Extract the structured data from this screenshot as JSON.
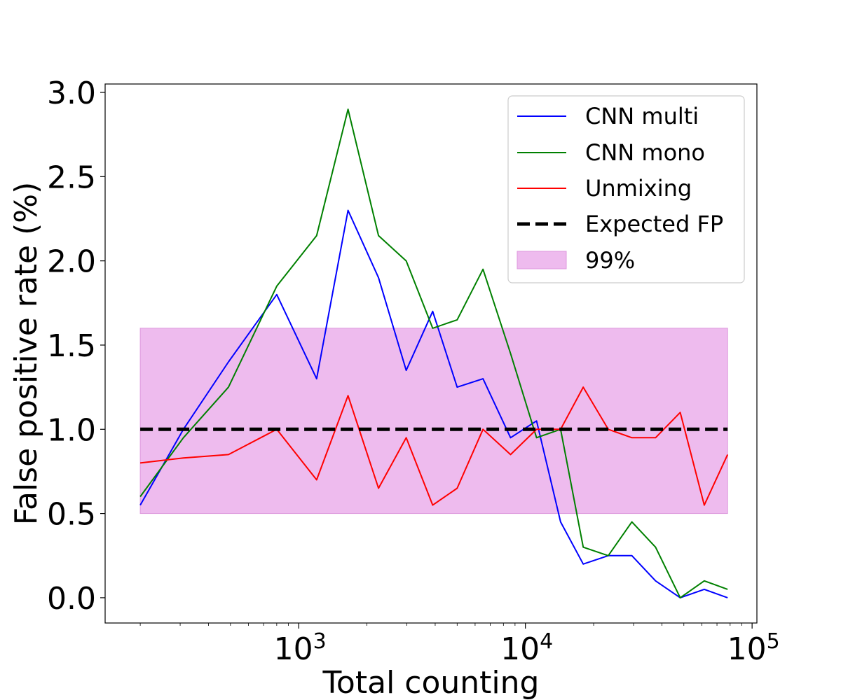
{
  "chart_data": {
    "type": "line",
    "xscale": "log",
    "xlabel": "Total counting",
    "ylabel": "False positive rate (%)",
    "xlim": [
      140,
      105000
    ],
    "ylim": [
      -0.15,
      3.05
    ],
    "x_major_ticks": [
      {
        "value": 1000,
        "base": "10",
        "exp": "3"
      },
      {
        "value": 10000,
        "base": "10",
        "exp": "4"
      },
      {
        "value": 100000,
        "base": "10",
        "exp": "5"
      }
    ],
    "y_ticks": [
      {
        "value": 0.0,
        "label": "0.0"
      },
      {
        "value": 0.5,
        "label": "0.5"
      },
      {
        "value": 1.0,
        "label": "1.0"
      },
      {
        "value": 1.5,
        "label": "1.5"
      },
      {
        "value": 2.0,
        "label": "2.0"
      },
      {
        "value": 2.5,
        "label": "2.5"
      },
      {
        "value": 3.0,
        "label": "3.0"
      }
    ],
    "x": [
      200,
      310,
      490,
      800,
      1200,
      1650,
      2250,
      2980,
      3900,
      5000,
      6500,
      8600,
      11200,
      14300,
      18000,
      23200,
      29500,
      37500,
      48200,
      61500,
      78000
    ],
    "series": [
      {
        "name": "CNN multi",
        "color": "#0000ff",
        "style": "solid",
        "values": [
          0.55,
          1.0,
          1.4,
          1.8,
          1.3,
          2.3,
          1.9,
          1.35,
          1.7,
          1.25,
          1.3,
          0.95,
          1.05,
          0.45,
          0.2,
          0.25,
          0.25,
          0.1,
          0.0,
          0.05,
          0.0
        ]
      },
      {
        "name": "CNN mono",
        "color": "#008000",
        "style": "solid",
        "values": [
          0.6,
          0.95,
          1.25,
          1.85,
          2.15,
          2.9,
          2.15,
          2.0,
          1.6,
          1.65,
          1.95,
          1.45,
          0.95,
          1.0,
          0.3,
          0.25,
          0.45,
          0.3,
          0.0,
          0.1,
          0.05
        ]
      },
      {
        "name": "Unmixing",
        "color": "#ff0000",
        "style": "solid",
        "values": [
          0.8,
          0.83,
          0.85,
          1.0,
          0.7,
          1.2,
          0.65,
          0.95,
          0.55,
          0.65,
          1.0,
          0.85,
          1.0,
          1.0,
          1.25,
          1.0,
          0.95,
          0.95,
          1.1,
          0.55,
          0.85
        ]
      },
      {
        "name": "Expected FP",
        "color": "#000000",
        "style": "dashed",
        "values": [
          1.0,
          1.0,
          1.0,
          1.0,
          1.0,
          1.0,
          1.0,
          1.0,
          1.0,
          1.0,
          1.0,
          1.0,
          1.0,
          1.0,
          1.0,
          1.0,
          1.0,
          1.0,
          1.0,
          1.0,
          1.0
        ]
      }
    ],
    "band": {
      "name": "99%",
      "color": "#eebbee",
      "edge_color": "#dd99dd",
      "lower": 0.5,
      "upper": 1.6,
      "x_start": 200,
      "x_end": 78000
    },
    "legend_position": "top-right",
    "grid": false
  }
}
